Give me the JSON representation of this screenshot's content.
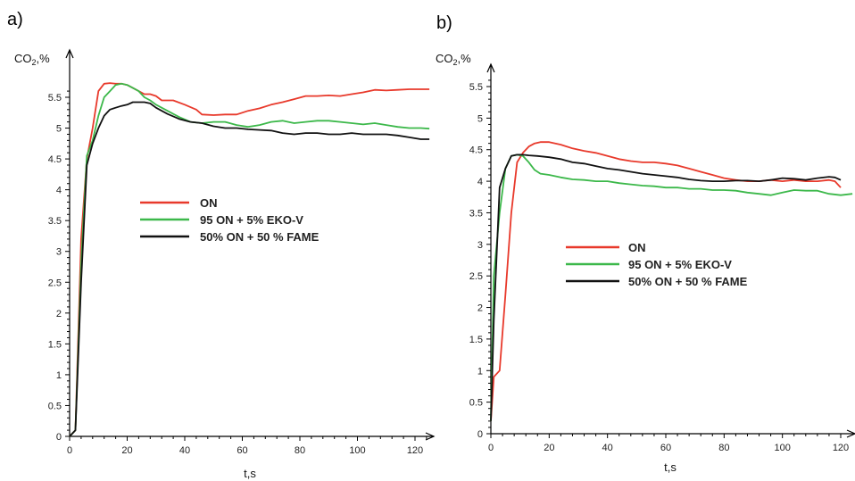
{
  "chart_data": [
    {
      "panel": "a)",
      "type": "line",
      "ylabel": "CO",
      "ylabel_sub": "2",
      "ylabel_unit": ",%",
      "xlabel": "t,s",
      "xlim": [
        0,
        126
      ],
      "ylim": [
        0,
        6.0
      ],
      "xticks": [
        0,
        20,
        40,
        60,
        80,
        100,
        120
      ],
      "yticks": [
        0,
        0.5,
        1,
        1.5,
        2,
        2.5,
        3,
        3.5,
        4,
        4.5,
        5,
        5.5
      ],
      "legend_position": "center-right",
      "series": [
        {
          "name": "ON",
          "color": "#e8392b",
          "points": [
            [
              0,
              0
            ],
            [
              2,
              0.1
            ],
            [
              4,
              3.2
            ],
            [
              6,
              4.5
            ],
            [
              8,
              5.0
            ],
            [
              10,
              5.6
            ],
            [
              12,
              5.72
            ],
            [
              14,
              5.73
            ],
            [
              16,
              5.72
            ],
            [
              18,
              5.72
            ],
            [
              20,
              5.7
            ],
            [
              22,
              5.65
            ],
            [
              24,
              5.6
            ],
            [
              26,
              5.55
            ],
            [
              28,
              5.55
            ],
            [
              30,
              5.52
            ],
            [
              32,
              5.45
            ],
            [
              36,
              5.45
            ],
            [
              40,
              5.38
            ],
            [
              44,
              5.3
            ],
            [
              46,
              5.22
            ],
            [
              50,
              5.21
            ],
            [
              54,
              5.22
            ],
            [
              58,
              5.22
            ],
            [
              62,
              5.28
            ],
            [
              66,
              5.32
            ],
            [
              70,
              5.38
            ],
            [
              74,
              5.42
            ],
            [
              78,
              5.47
            ],
            [
              82,
              5.52
            ],
            [
              86,
              5.52
            ],
            [
              90,
              5.53
            ],
            [
              94,
              5.52
            ],
            [
              98,
              5.55
            ],
            [
              102,
              5.58
            ],
            [
              106,
              5.62
            ],
            [
              110,
              5.61
            ],
            [
              114,
              5.62
            ],
            [
              118,
              5.63
            ],
            [
              122,
              5.63
            ],
            [
              125,
              5.63
            ]
          ]
        },
        {
          "name": "95 ON + 5% EKO-V",
          "color": "#3cb84a",
          "points": [
            [
              0,
              0
            ],
            [
              2,
              0.1
            ],
            [
              4,
              2.8
            ],
            [
              6,
              4.55
            ],
            [
              8,
              4.8
            ],
            [
              10,
              5.2
            ],
            [
              12,
              5.5
            ],
            [
              14,
              5.6
            ],
            [
              16,
              5.7
            ],
            [
              18,
              5.72
            ],
            [
              20,
              5.7
            ],
            [
              22,
              5.65
            ],
            [
              24,
              5.6
            ],
            [
              26,
              5.5
            ],
            [
              28,
              5.45
            ],
            [
              30,
              5.38
            ],
            [
              34,
              5.28
            ],
            [
              38,
              5.18
            ],
            [
              42,
              5.1
            ],
            [
              46,
              5.08
            ],
            [
              50,
              5.1
            ],
            [
              54,
              5.1
            ],
            [
              58,
              5.05
            ],
            [
              62,
              5.02
            ],
            [
              66,
              5.05
            ],
            [
              70,
              5.1
            ],
            [
              74,
              5.12
            ],
            [
              78,
              5.08
            ],
            [
              82,
              5.1
            ],
            [
              86,
              5.12
            ],
            [
              90,
              5.12
            ],
            [
              94,
              5.1
            ],
            [
              98,
              5.08
            ],
            [
              102,
              5.06
            ],
            [
              106,
              5.08
            ],
            [
              110,
              5.05
            ],
            [
              114,
              5.02
            ],
            [
              118,
              5.0
            ],
            [
              122,
              5.0
            ],
            [
              125,
              4.99
            ]
          ]
        },
        {
          "name": "50% ON + 50 % FAME",
          "color": "#111111",
          "points": [
            [
              0,
              0
            ],
            [
              2,
              0.1
            ],
            [
              4,
              2.5
            ],
            [
              6,
              4.4
            ],
            [
              8,
              4.75
            ],
            [
              10,
              5.0
            ],
            [
              12,
              5.2
            ],
            [
              14,
              5.3
            ],
            [
              16,
              5.33
            ],
            [
              18,
              5.36
            ],
            [
              20,
              5.38
            ],
            [
              22,
              5.42
            ],
            [
              26,
              5.42
            ],
            [
              28,
              5.4
            ],
            [
              30,
              5.33
            ],
            [
              34,
              5.23
            ],
            [
              38,
              5.15
            ],
            [
              42,
              5.1
            ],
            [
              46,
              5.08
            ],
            [
              50,
              5.03
            ],
            [
              54,
              5.0
            ],
            [
              58,
              5.0
            ],
            [
              62,
              4.98
            ],
            [
              66,
              4.97
            ],
            [
              70,
              4.96
            ],
            [
              74,
              4.92
            ],
            [
              78,
              4.9
            ],
            [
              82,
              4.92
            ],
            [
              86,
              4.92
            ],
            [
              90,
              4.9
            ],
            [
              94,
              4.9
            ],
            [
              98,
              4.92
            ],
            [
              102,
              4.9
            ],
            [
              106,
              4.9
            ],
            [
              110,
              4.9
            ],
            [
              114,
              4.88
            ],
            [
              118,
              4.85
            ],
            [
              122,
              4.82
            ],
            [
              125,
              4.82
            ]
          ]
        }
      ]
    },
    {
      "panel": "b)",
      "type": "line",
      "ylabel": "CO",
      "ylabel_sub": "2",
      "ylabel_unit": ",%",
      "xlabel": "t,s",
      "xlim": [
        0,
        124
      ],
      "ylim": [
        0,
        6.0
      ],
      "xticks": [
        0,
        20,
        40,
        60,
        80,
        100,
        120
      ],
      "yticks": [
        0,
        0.5,
        1,
        1.5,
        2,
        2.5,
        3,
        3.5,
        4,
        4.5,
        5,
        5.5
      ],
      "legend_position": "center-right",
      "series": [
        {
          "name": "ON",
          "color": "#e8392b",
          "points": [
            [
              0,
              0.2
            ],
            [
              1,
              0.9
            ],
            [
              3,
              1.0
            ],
            [
              5,
              2.2
            ],
            [
              7,
              3.5
            ],
            [
              9,
              4.3
            ],
            [
              11,
              4.45
            ],
            [
              13,
              4.55
            ],
            [
              15,
              4.6
            ],
            [
              17,
              4.62
            ],
            [
              20,
              4.62
            ],
            [
              24,
              4.58
            ],
            [
              28,
              4.52
            ],
            [
              32,
              4.48
            ],
            [
              36,
              4.45
            ],
            [
              40,
              4.4
            ],
            [
              44,
              4.35
            ],
            [
              48,
              4.32
            ],
            [
              52,
              4.3
            ],
            [
              56,
              4.3
            ],
            [
              60,
              4.28
            ],
            [
              64,
              4.25
            ],
            [
              68,
              4.2
            ],
            [
              72,
              4.15
            ],
            [
              76,
              4.1
            ],
            [
              80,
              4.05
            ],
            [
              84,
              4.02
            ],
            [
              88,
              4.0
            ],
            [
              92,
              4.0
            ],
            [
              96,
              4.02
            ],
            [
              100,
              4.0
            ],
            [
              104,
              4.02
            ],
            [
              108,
              4.0
            ],
            [
              112,
              4.0
            ],
            [
              116,
              4.02
            ],
            [
              118,
              4.0
            ],
            [
              120,
              3.9
            ]
          ]
        },
        {
          "name": "95 ON + 5% EKO-V",
          "color": "#3cb84a",
          "points": [
            [
              0,
              0.2
            ],
            [
              1,
              2.5
            ],
            [
              3,
              3.5
            ],
            [
              5,
              4.2
            ],
            [
              7,
              4.4
            ],
            [
              9,
              4.42
            ],
            [
              11,
              4.4
            ],
            [
              13,
              4.3
            ],
            [
              15,
              4.18
            ],
            [
              17,
              4.12
            ],
            [
              20,
              4.1
            ],
            [
              24,
              4.06
            ],
            [
              28,
              4.03
            ],
            [
              32,
              4.02
            ],
            [
              36,
              4.0
            ],
            [
              40,
              4.0
            ],
            [
              44,
              3.97
            ],
            [
              48,
              3.95
            ],
            [
              52,
              3.93
            ],
            [
              56,
              3.92
            ],
            [
              60,
              3.9
            ],
            [
              64,
              3.9
            ],
            [
              68,
              3.88
            ],
            [
              72,
              3.88
            ],
            [
              76,
              3.86
            ],
            [
              80,
              3.86
            ],
            [
              84,
              3.85
            ],
            [
              88,
              3.82
            ],
            [
              92,
              3.8
            ],
            [
              96,
              3.78
            ],
            [
              100,
              3.82
            ],
            [
              104,
              3.86
            ],
            [
              108,
              3.85
            ],
            [
              112,
              3.85
            ],
            [
              116,
              3.8
            ],
            [
              120,
              3.78
            ],
            [
              124,
              3.8
            ]
          ]
        },
        {
          "name": "50% ON + 50 % FAME",
          "color": "#111111",
          "points": [
            [
              0,
              0.2
            ],
            [
              1,
              1.8
            ],
            [
              3,
              3.9
            ],
            [
              5,
              4.2
            ],
            [
              7,
              4.4
            ],
            [
              9,
              4.42
            ],
            [
              11,
              4.42
            ],
            [
              13,
              4.41
            ],
            [
              16,
              4.4
            ],
            [
              20,
              4.38
            ],
            [
              24,
              4.35
            ],
            [
              28,
              4.3
            ],
            [
              32,
              4.28
            ],
            [
              36,
              4.24
            ],
            [
              40,
              4.2
            ],
            [
              44,
              4.18
            ],
            [
              48,
              4.15
            ],
            [
              52,
              4.12
            ],
            [
              56,
              4.1
            ],
            [
              60,
              4.08
            ],
            [
              64,
              4.06
            ],
            [
              68,
              4.03
            ],
            [
              72,
              4.01
            ],
            [
              76,
              4.0
            ],
            [
              80,
              4.0
            ],
            [
              84,
              4.01
            ],
            [
              88,
              4.01
            ],
            [
              92,
              4.0
            ],
            [
              96,
              4.02
            ],
            [
              100,
              4.05
            ],
            [
              104,
              4.04
            ],
            [
              108,
              4.02
            ],
            [
              112,
              4.05
            ],
            [
              116,
              4.07
            ],
            [
              118,
              4.06
            ],
            [
              120,
              4.02
            ]
          ]
        }
      ]
    }
  ]
}
